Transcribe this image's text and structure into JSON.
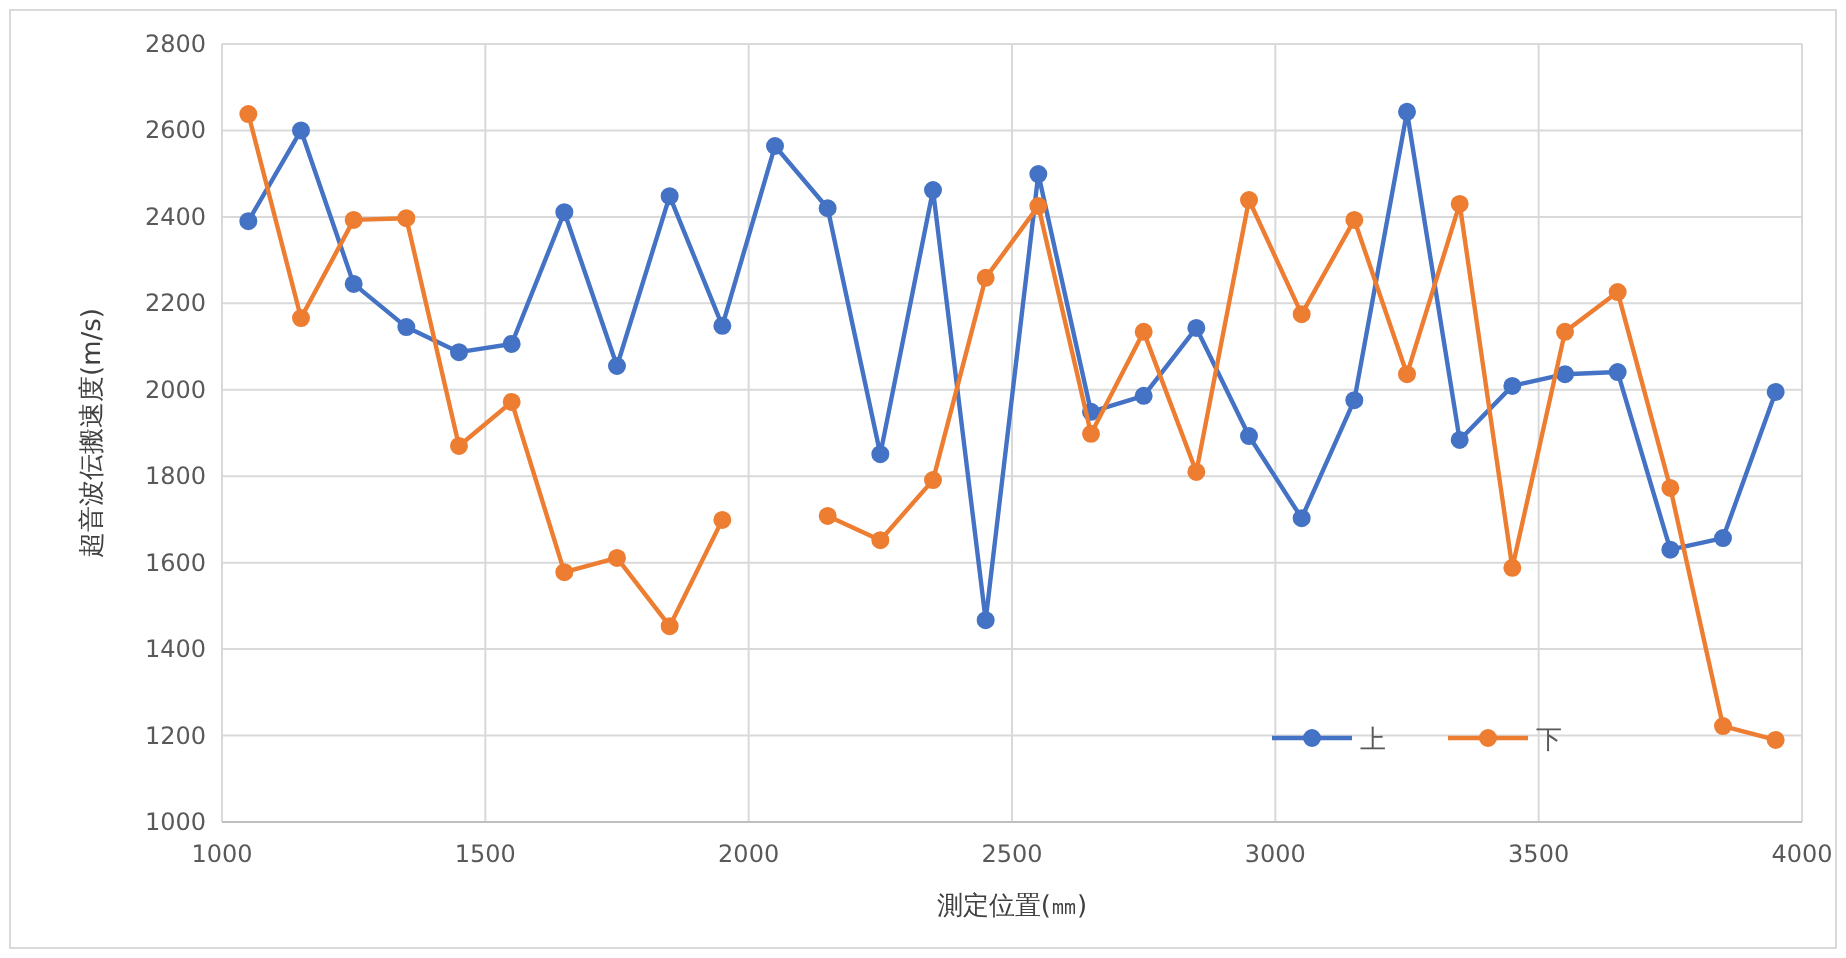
{
  "chart_data": {
    "type": "line",
    "xlabel": "測定位置(㎜)",
    "ylabel": "超音波伝搬速度(m/s)",
    "x": [
      1050,
      1150,
      1250,
      1350,
      1450,
      1550,
      1650,
      1750,
      1850,
      1950,
      2050,
      2150,
      2250,
      2350,
      2450,
      2550,
      2650,
      2750,
      2850,
      2950,
      3050,
      3150,
      3250,
      3350,
      3450,
      3550,
      3650,
      3750,
      3850,
      3950
    ],
    "series": [
      {
        "name": "上",
        "color": "#4472c4",
        "values": [
          2390,
          2600,
          2245,
          2145,
          2087,
          2106,
          2411,
          2055,
          2448,
          2148,
          2564,
          2420,
          1851,
          2462,
          1467,
          2499,
          1949,
          1986,
          2143,
          1893,
          1703,
          1976,
          2643,
          1884,
          2009,
          2036,
          2041,
          1630,
          1657,
          1995
        ]
      },
      {
        "name": "下",
        "color": "#ed7d31",
        "values": [
          2638,
          2166,
          2393,
          2397,
          1870,
          1972,
          1578,
          1611,
          1453,
          1699,
          null,
          1708,
          1652,
          1791,
          2259,
          2425,
          1898,
          2134,
          1810,
          2439,
          2175,
          2393,
          2036,
          2430,
          1588,
          2134,
          2226,
          1773,
          1222,
          1190
        ]
      }
    ],
    "xlim": [
      1000,
      4000
    ],
    "xticks": [
      1000,
      1500,
      2000,
      2500,
      3000,
      3500,
      4000
    ],
    "ylim": [
      1000,
      2800
    ],
    "yticks": [
      1000,
      1200,
      1400,
      1600,
      1800,
      2000,
      2200,
      2400,
      2600,
      2800
    ],
    "grid": true,
    "legend": "bottom right",
    "marker": "circle",
    "line_style": "solid"
  }
}
